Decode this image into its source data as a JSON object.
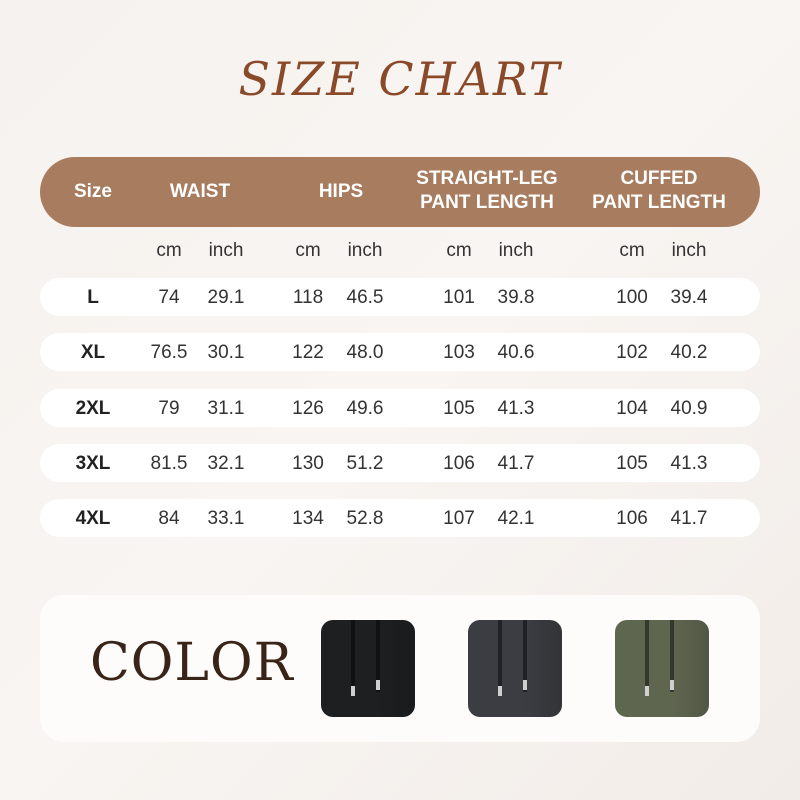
{
  "title": "SIZE CHART",
  "header": {
    "size": "Size",
    "waist": "WAIST",
    "hips": "HIPS",
    "straight_leg": [
      "STRAIGHT-LEG",
      "PANT LENGTH"
    ],
    "cuffed": [
      "CUFFED",
      "PANT LENGTH"
    ]
  },
  "units": [
    "cm",
    "inch",
    "cm",
    "inch",
    "cm",
    "inch",
    "cm",
    "inch"
  ],
  "rows": [
    {
      "size": "L",
      "values": [
        "74",
        "29.1",
        "118",
        "46.5",
        "101",
        "39.8",
        "100",
        "39.4"
      ]
    },
    {
      "size": "XL",
      "values": [
        "76.5",
        "30.1",
        "122",
        "48.0",
        "103",
        "40.6",
        "102",
        "40.2"
      ]
    },
    {
      "size": "2XL",
      "values": [
        "79",
        "31.1",
        "126",
        "49.6",
        "105",
        "41.3",
        "104",
        "40.9"
      ]
    },
    {
      "size": "3XL",
      "values": [
        "81.5",
        "32.1",
        "130",
        "51.2",
        "106",
        "41.7",
        "105",
        "41.3"
      ]
    },
    {
      "size": "4XL",
      "values": [
        "84",
        "33.1",
        "134",
        "52.8",
        "107",
        "42.1",
        "106",
        "41.7"
      ]
    }
  ],
  "color_section": {
    "label": "COLOR",
    "swatches": [
      {
        "name": "black",
        "hex": "#1e1f21"
      },
      {
        "name": "dark-gray",
        "hex": "#3b3d42"
      },
      {
        "name": "army-green",
        "hex": "#5f6650"
      }
    ]
  },
  "colors": {
    "header_bg": "#a87c5e",
    "title": "#8a4a2a"
  }
}
